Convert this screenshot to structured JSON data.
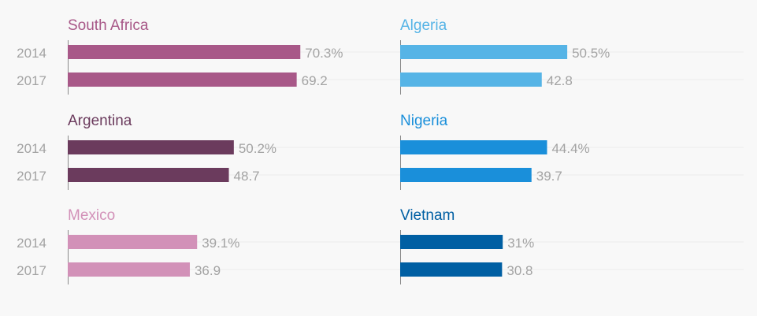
{
  "chart_data": [
    {
      "type": "bar",
      "title": "South Africa",
      "color": "#a85888",
      "categories": [
        "2014",
        "2017"
      ],
      "values": [
        70.3,
        69.2
      ],
      "labels": [
        "70.3%",
        "69.2"
      ],
      "xlim": [
        0,
        100
      ]
    },
    {
      "type": "bar",
      "title": "Algeria",
      "color": "#56b4e6",
      "categories": [
        "2014",
        "2017"
      ],
      "values": [
        50.5,
        42.8
      ],
      "labels": [
        "50.5%",
        "42.8"
      ],
      "xlim": [
        0,
        100
      ]
    },
    {
      "type": "bar",
      "title": "Argentina",
      "color": "#6b3b5d",
      "categories": [
        "2014",
        "2017"
      ],
      "values": [
        50.2,
        48.7
      ],
      "labels": [
        "50.2%",
        "48.7"
      ],
      "xlim": [
        0,
        100
      ]
    },
    {
      "type": "bar",
      "title": "Nigeria",
      "color": "#1a8fda",
      "categories": [
        "2014",
        "2017"
      ],
      "values": [
        44.4,
        39.7
      ],
      "labels": [
        "44.4%",
        "39.7"
      ],
      "xlim": [
        0,
        100
      ]
    },
    {
      "type": "bar",
      "title": "Mexico",
      "color": "#d291b8",
      "categories": [
        "2014",
        "2017"
      ],
      "values": [
        39.1,
        36.9
      ],
      "labels": [
        "39.1%",
        "36.9"
      ],
      "xlim": [
        0,
        100
      ]
    },
    {
      "type": "bar",
      "title": "Vietnam",
      "color": "#005fa3",
      "categories": [
        "2014",
        "2017"
      ],
      "values": [
        31,
        30.8
      ],
      "labels": [
        "31%",
        "30.8"
      ],
      "xlim": [
        0,
        100
      ]
    }
  ]
}
